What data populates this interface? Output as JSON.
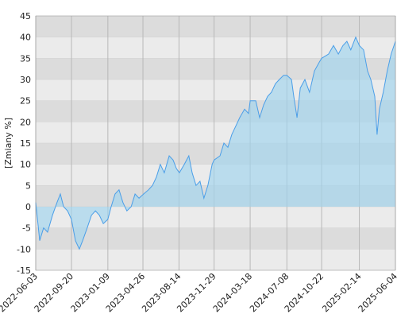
{
  "chart_data": {
    "type": "area",
    "y_label": "[Zmiany %]",
    "x": [
      "2022-06-03",
      "2022-06-15",
      "2022-06-27",
      "2022-07-09",
      "2022-07-24",
      "2022-08-07",
      "2022-08-17",
      "2022-08-27",
      "2022-09-08",
      "2022-09-20",
      "2022-10-02",
      "2022-10-14",
      "2022-10-24",
      "2022-11-07",
      "2022-11-20",
      "2022-12-02",
      "2022-12-14",
      "2022-12-26",
      "2023-01-09",
      "2023-01-19",
      "2023-01-31",
      "2023-02-12",
      "2023-02-24",
      "2023-03-08",
      "2023-03-21",
      "2023-04-02",
      "2023-04-14",
      "2023-04-28",
      "2023-05-13",
      "2023-05-25",
      "2023-06-06",
      "2023-06-18",
      "2023-06-30",
      "2023-07-15",
      "2023-07-27",
      "2023-08-06",
      "2023-08-15",
      "2023-08-30",
      "2023-09-13",
      "2023-09-23",
      "2023-10-05",
      "2023-10-17",
      "2023-10-29",
      "2023-11-10",
      "2023-11-23",
      "2023-11-29",
      "2023-12-17",
      "2023-12-29",
      "2024-01-10",
      "2024-01-22",
      "2024-02-03",
      "2024-02-15",
      "2024-03-01",
      "2024-03-13",
      "2024-03-18",
      "2024-04-04",
      "2024-04-16",
      "2024-04-28",
      "2024-05-10",
      "2024-05-22",
      "2024-06-03",
      "2024-06-15",
      "2024-06-28",
      "2024-07-08",
      "2024-07-22",
      "2024-07-29",
      "2024-08-08",
      "2024-08-18",
      "2024-09-01",
      "2024-09-15",
      "2024-09-30",
      "2024-10-14",
      "2024-10-22",
      "2024-11-12",
      "2024-11-27",
      "2024-12-12",
      "2024-12-26",
      "2025-01-07",
      "2025-01-19",
      "2025-02-03",
      "2025-02-14",
      "2025-02-27",
      "2025-03-11",
      "2025-03-21",
      "2025-04-02",
      "2025-04-09",
      "2025-04-16",
      "2025-04-28",
      "2025-05-10",
      "2025-05-22",
      "2025-06-04"
    ],
    "values": [
      1,
      -8,
      -5,
      -6,
      -2,
      1,
      3,
      0,
      -1,
      -3,
      -8,
      -10,
      -8,
      -5,
      -2,
      -1,
      -2,
      -4,
      -3,
      0,
      3,
      4,
      1,
      -1,
      0,
      3,
      2,
      3,
      4,
      5,
      7,
      10,
      8,
      12,
      11,
      9,
      8,
      10,
      12,
      8,
      5,
      6,
      2,
      5,
      10,
      11,
      12,
      15,
      14,
      17,
      19,
      21,
      23,
      22,
      25,
      25,
      21,
      24,
      26,
      27,
      29,
      30,
      31,
      31,
      30,
      26,
      21,
      28,
      30,
      27,
      32,
      34,
      35,
      36,
      38,
      36,
      38,
      39,
      37,
      40,
      38,
      37,
      32,
      30,
      26,
      17,
      23,
      27,
      32,
      36,
      39
    ],
    "color": "#4a9ee8",
    "xlim": [
      "2022-06-03",
      "2025-06-04"
    ],
    "xticks": [
      "2022-06-03",
      "2022-09-20",
      "2023-01-09",
      "2023-04-26",
      "2023-08-14",
      "2023-11-29",
      "2024-03-18",
      "2024-07-08",
      "2024-10-22",
      "2025-02-14",
      "2025-06-04"
    ],
    "ylim": [
      -15,
      45
    ],
    "yticks": [
      -15,
      -10,
      -5,
      0,
      5,
      10,
      15,
      20,
      25,
      30,
      35,
      40,
      45
    ],
    "grid": true
  }
}
